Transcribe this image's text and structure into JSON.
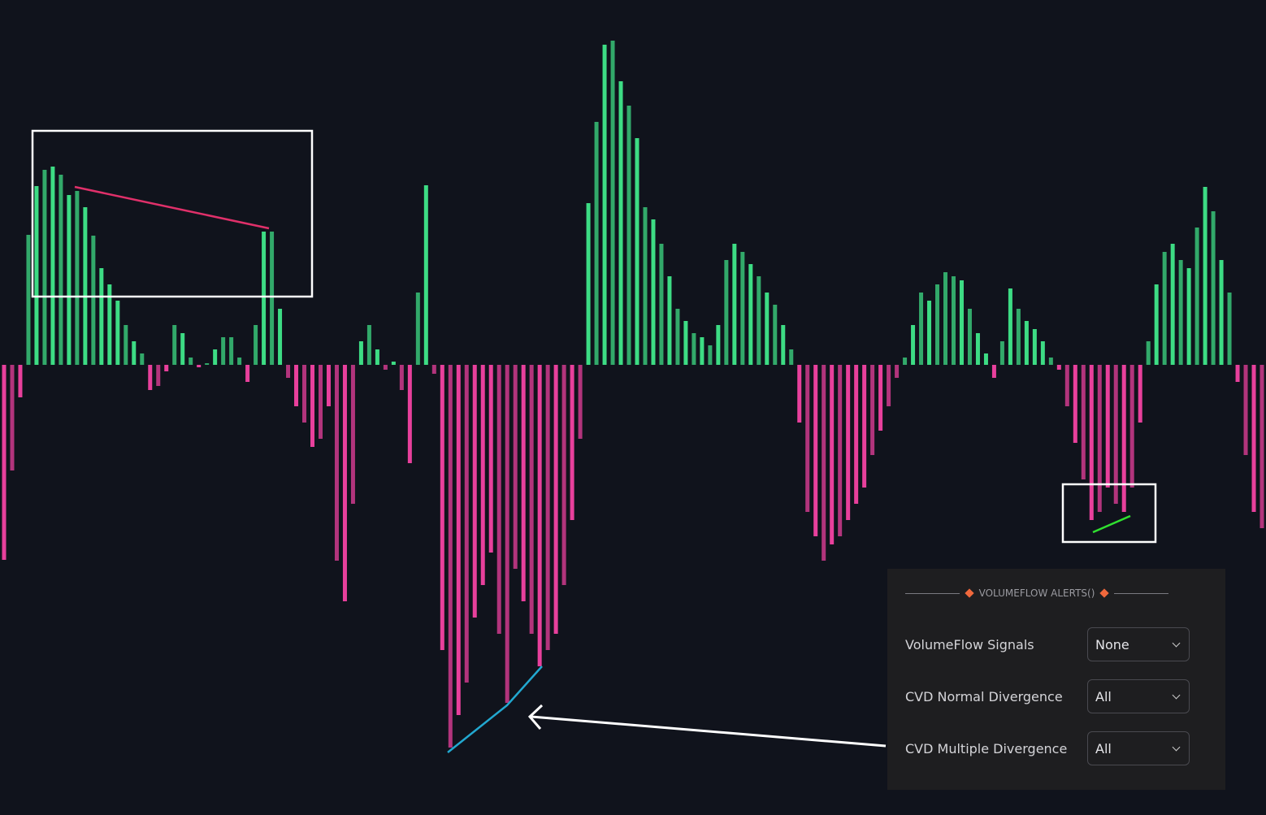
{
  "chart_data": {
    "type": "bar",
    "values": [
      -240,
      -130,
      -40,
      160,
      220,
      240,
      244,
      234,
      209,
      214,
      194,
      159,
      119,
      99,
      79,
      49,
      29,
      14,
      -31,
      -26,
      -8,
      49,
      39,
      9,
      -3,
      2,
      19,
      34,
      34,
      9,
      -21,
      49,
      164,
      164,
      69,
      -16,
      -51,
      -71,
      -101,
      -91,
      -51,
      -241,
      -291,
      -171,
      29,
      49,
      19,
      -6,
      4,
      -31,
      -121,
      89,
      221,
      -11,
      -351,
      -471,
      -431,
      -391,
      -311,
      -271,
      -231,
      -331,
      -416,
      -251,
      -291,
      -331,
      -371,
      -351,
      -331,
      -271,
      -191,
      -91,
      199,
      299,
      394,
      399,
      349,
      319,
      279,
      194,
      179,
      149,
      109,
      69,
      54,
      39,
      34,
      24,
      49,
      129,
      149,
      139,
      124,
      109,
      89,
      74,
      49,
      19,
      -71,
      -181,
      -211,
      -241,
      -221,
      -211,
      -191,
      -171,
      -151,
      -111,
      -81,
      -51,
      -16,
      9,
      49,
      89,
      79,
      99,
      114,
      109,
      104,
      69,
      39,
      14,
      -16,
      29,
      94,
      69,
      54,
      44,
      29,
      9,
      -6,
      -51,
      -96,
      -141,
      -191,
      -181,
      -151,
      -171,
      -181,
      -151,
      -71,
      29,
      99,
      139,
      149,
      129,
      119,
      169,
      219,
      189,
      129,
      89,
      -21,
      -111,
      -181,
      -201
    ],
    "ylim": [
      -554,
      449
    ],
    "color_up": "#3ddc84",
    "color_down": "#e8409c"
  },
  "panel": {
    "title": "VOLUMEFLOW ALERTS()",
    "rows": [
      {
        "label": "VolumeFlow Signals",
        "value": "None"
      },
      {
        "label": "CVD Normal Divergence",
        "value": "All"
      },
      {
        "label": "CVD Multiple Divergence",
        "value": "All"
      }
    ]
  }
}
